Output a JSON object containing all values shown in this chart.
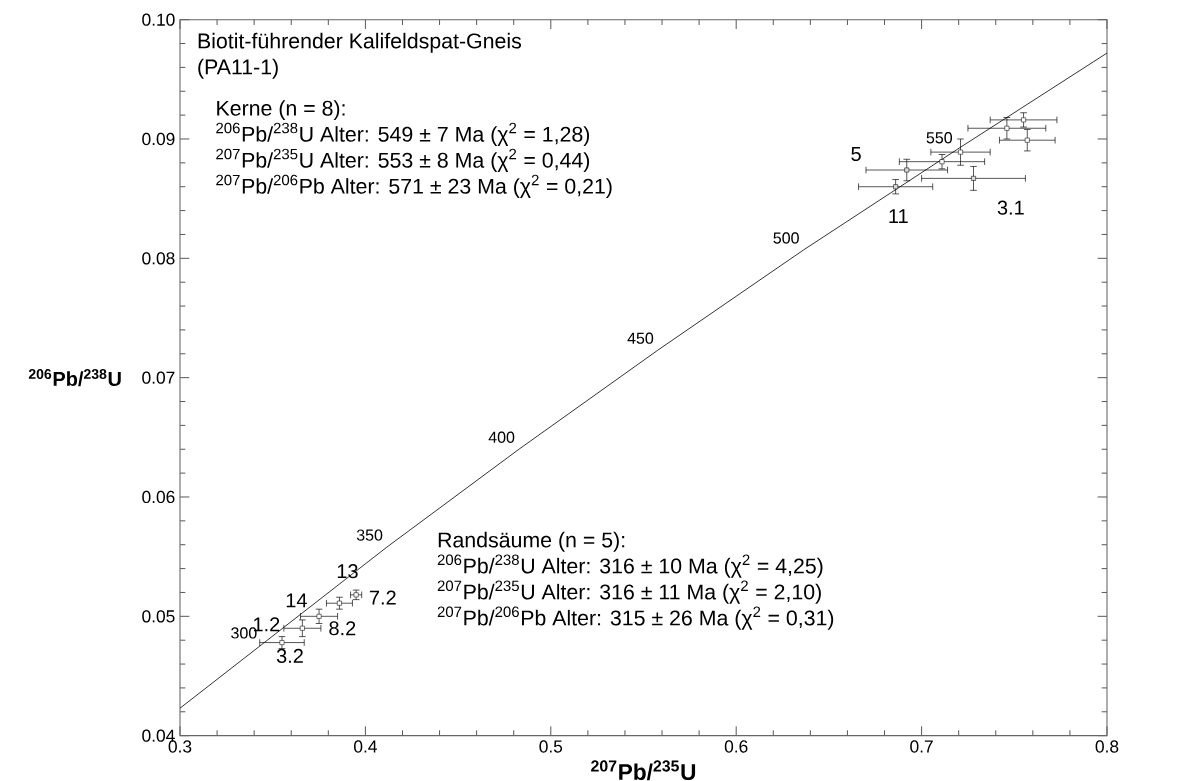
{
  "chart_data": {
    "type": "scatter",
    "title": "Biotit-führender Kalifeldspat-Gneis",
    "subtitle": "(PA11-1)",
    "xlabel": "$^{207}$Pb/$^{235}$U",
    "ylabel": "$^{206}$Pb/$^{238}$U",
    "xlim": [
      0.3,
      0.8
    ],
    "ylim": [
      0.04,
      0.1
    ],
    "xticks": [
      0.3,
      0.4,
      0.5,
      0.6,
      0.7,
      0.8
    ],
    "yticks": [
      0.04,
      0.05,
      0.06,
      0.07,
      0.08,
      0.09,
      {
        "value": 0.1,
        "label": "0.10"
      }
    ],
    "grid": false,
    "marker": "square",
    "series": [
      {
        "type": "line",
        "color": "#000000",
        "line_style": "solid",
        "marker": "none",
        "x": [
          0.3,
          0.3438,
          0.4116,
          0.4828,
          0.5577,
          0.6363,
          0.7189,
          0.8
        ],
        "values": [
          0.0423,
          0.0476,
          0.0558,
          0.064,
          0.0723,
          0.0807,
          0.0891,
          0.0972
        ]
      },
      {
        "color": "#d9d9d9",
        "x": [
          0.692,
          0.686,
          0.728
        ],
        "values": [
          0.0874,
          0.086,
          0.0867
        ],
        "xerrors": [
          0.022,
          0.02,
          0.028
        ],
        "errors": [
          0.0009,
          0.0006,
          0.001
        ]
      },
      {
        "color": "#ffffff",
        "x": [
          0.721,
          0.746,
          0.755,
          0.757,
          0.711,
          0.355,
          0.366,
          0.375,
          0.386,
          0.395
        ],
        "values": [
          0.0889,
          0.0909,
          0.0916,
          0.0899,
          0.0881,
          0.0478,
          0.049,
          0.05,
          0.0511,
          0.0518
        ],
        "xerrors": [
          0.016,
          0.021,
          0.018,
          0.015,
          0.023,
          0.012,
          0.01,
          0.01,
          0.007,
          0.003
        ],
        "errors": [
          0.0011,
          0.0009,
          0.0006,
          0.0009,
          0.0006,
          0.0005,
          0.0007,
          0.0006,
          0.0005,
          0.0004
        ]
      }
    ],
    "annotations": [
      "Kerne (n = 8):",
      "$^{206}$Pb/$^{238}$U   Alter: 549 ±   7 Ma (χ$^{2}$ = 1,28)",
      "$^{207}$Pb/$^{235}$U   Alter: 553 ±   8 Ma (χ$^{2}$ = 0,44)",
      "$^{207}$Pb/$^{206}$Pb Alter: 571 ± 23 Ma (χ$^{2}$ = 0,21)",
      "Randsäume (n = 5):",
      "$^{206}$Pb/$^{238}$U   Alter: 316 ± 10 Ma (χ$^{2}$ = 4,25)",
      "$^{207}$Pb/$^{235}$U   Alter: 316 ± 11 Ma (χ$^{2}$ = 2,10)",
      "$^{207}$Pb/$^{206}$Pb Alter: 315 ± 26 Ma (χ$^{2}$ = 0,31)",
      {
        "text": "300",
        "x": 0.3438,
        "y": 0.0476
      },
      {
        "text": "350",
        "x": 0.4116,
        "y": 0.0558
      },
      {
        "text": "400",
        "x": 0.4828,
        "y": 0.064
      },
      {
        "text": "450",
        "x": 0.5577,
        "y": 0.0723
      },
      {
        "text": "500",
        "x": 0.6363,
        "y": 0.0807
      },
      {
        "text": "550",
        "x": 0.7189,
        "y": 0.0891
      },
      {
        "text": "5",
        "x": 0.692,
        "y": 0.0874
      },
      {
        "text": "11",
        "x": 0.686,
        "y": 0.086
      },
      {
        "text": "3.1",
        "x": 0.728,
        "y": 0.0867
      },
      {
        "text": "1.2",
        "x": 0.366,
        "y": 0.049
      },
      {
        "text": "14",
        "x": 0.375,
        "y": 0.05
      },
      {
        "text": "13",
        "x": 0.386,
        "y": 0.0511
      },
      {
        "text": "7.2",
        "x": 0.395,
        "y": 0.0518
      },
      {
        "text": "8.2",
        "x": 0.366,
        "y": 0.049
      },
      {
        "text": "3.2",
        "x": 0.355,
        "y": 0.0478
      }
    ]
  }
}
